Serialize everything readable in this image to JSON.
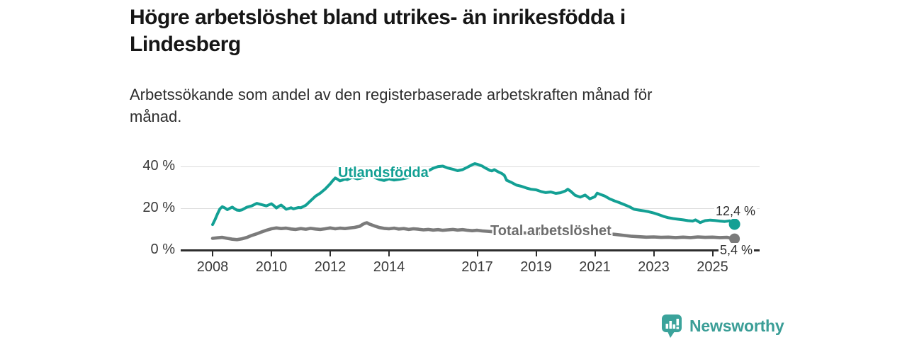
{
  "title": "Högre arbetslöshet bland utrikes- än inrikesfödda i Lindesberg",
  "subtitle": "Arbetssökande som andel av den registerbaserade arbetskraften månad för månad.",
  "branding": {
    "logo_text": "Newsworthy",
    "logo_icon": "bar-chart-speech-bubble-icon",
    "brand_color": "#3BA39B"
  },
  "colors": {
    "foreign_born_line": "#13a094",
    "total_line": "#7b7b7b",
    "total_label_text": "#6d6d6d",
    "gridline": "#dcdcdc",
    "axis": "#2d2d2d",
    "title_text": "#161616",
    "body_text": "#2e2e2e"
  },
  "chart_data": {
    "type": "line",
    "x_unit": "year (monthly observations)",
    "y_unit": "percent of registered labour force",
    "x_ticks": [
      "2008",
      "2010",
      "2012",
      "2014",
      "2017",
      "2019",
      "2021",
      "2023",
      "2025"
    ],
    "x_tick_years": [
      2008,
      2010,
      2012,
      2014,
      2017,
      2019,
      2021,
      2023,
      2025
    ],
    "y_ticks": [
      {
        "value": 0,
        "label": "0 %"
      },
      {
        "value": 20,
        "label": "20 %"
      },
      {
        "value": 40,
        "label": "40 %"
      }
    ],
    "ylim": [
      0,
      44
    ],
    "xlim": [
      2006.9,
      2026.6
    ],
    "grid": "horizontal-only",
    "legend": "inline-series-labels",
    "series": [
      {
        "name": "Utlandsfödda",
        "color": "#13a094",
        "end_value": 12.4,
        "end_label": "12,4 %",
        "points": [
          [
            2008.0,
            12.2
          ],
          [
            2008.08,
            14.5
          ],
          [
            2008.17,
            17.5
          ],
          [
            2008.25,
            19.8
          ],
          [
            2008.33,
            20.8
          ],
          [
            2008.42,
            20.2
          ],
          [
            2008.5,
            19.4
          ],
          [
            2008.58,
            20.0
          ],
          [
            2008.67,
            20.6
          ],
          [
            2008.75,
            19.8
          ],
          [
            2008.83,
            19.2
          ],
          [
            2008.92,
            19.0
          ],
          [
            2009.0,
            19.3
          ],
          [
            2009.17,
            20.6
          ],
          [
            2009.33,
            21.2
          ],
          [
            2009.5,
            22.4
          ],
          [
            2009.67,
            21.8
          ],
          [
            2009.83,
            21.2
          ],
          [
            2010.0,
            22.2
          ],
          [
            2010.08,
            21.4
          ],
          [
            2010.17,
            20.2
          ],
          [
            2010.25,
            21.0
          ],
          [
            2010.33,
            21.6
          ],
          [
            2010.42,
            20.6
          ],
          [
            2010.5,
            19.6
          ],
          [
            2010.58,
            19.9
          ],
          [
            2010.67,
            20.3
          ],
          [
            2010.75,
            19.8
          ],
          [
            2010.83,
            20.1
          ],
          [
            2010.92,
            20.4
          ],
          [
            2011.0,
            20.3
          ],
          [
            2011.17,
            21.5
          ],
          [
            2011.33,
            23.6
          ],
          [
            2011.5,
            25.9
          ],
          [
            2011.67,
            27.4
          ],
          [
            2011.83,
            29.3
          ],
          [
            2012.0,
            31.8
          ],
          [
            2012.08,
            33.2
          ],
          [
            2012.17,
            34.6
          ],
          [
            2012.25,
            34.0
          ],
          [
            2012.33,
            33.2
          ],
          [
            2012.42,
            33.6
          ],
          [
            2012.5,
            34.1
          ],
          [
            2012.58,
            33.8
          ],
          [
            2012.67,
            34.4
          ],
          [
            2012.75,
            35.0
          ],
          [
            2012.83,
            34.6
          ],
          [
            2012.92,
            34.2
          ],
          [
            2013.0,
            34.4
          ],
          [
            2013.17,
            35.1
          ],
          [
            2013.33,
            35.6
          ],
          [
            2013.5,
            34.9
          ],
          [
            2013.67,
            33.9
          ],
          [
            2013.83,
            33.4
          ],
          [
            2014.0,
            34.2
          ],
          [
            2014.17,
            33.6
          ],
          [
            2014.33,
            33.9
          ],
          [
            2014.5,
            34.3
          ],
          [
            2014.67,
            34.9
          ],
          [
            2014.83,
            35.6
          ],
          [
            2015.0,
            36.4
          ],
          [
            2015.17,
            37.1
          ],
          [
            2015.33,
            38.0
          ],
          [
            2015.5,
            39.3
          ],
          [
            2015.67,
            40.1
          ],
          [
            2015.83,
            40.3
          ],
          [
            2016.0,
            39.4
          ],
          [
            2016.17,
            38.8
          ],
          [
            2016.33,
            38.1
          ],
          [
            2016.5,
            38.6
          ],
          [
            2016.67,
            39.8
          ],
          [
            2016.83,
            41.0
          ],
          [
            2016.92,
            41.5
          ],
          [
            2017.0,
            41.2
          ],
          [
            2017.08,
            40.8
          ],
          [
            2017.17,
            40.3
          ],
          [
            2017.25,
            39.6
          ],
          [
            2017.33,
            39.0
          ],
          [
            2017.42,
            38.3
          ],
          [
            2017.5,
            38.0
          ],
          [
            2017.58,
            38.6
          ],
          [
            2017.67,
            37.9
          ],
          [
            2017.75,
            37.3
          ],
          [
            2017.83,
            36.8
          ],
          [
            2017.92,
            35.9
          ],
          [
            2018.0,
            33.5
          ],
          [
            2018.17,
            32.4
          ],
          [
            2018.33,
            31.2
          ],
          [
            2018.5,
            30.6
          ],
          [
            2018.67,
            29.8
          ],
          [
            2018.83,
            29.2
          ],
          [
            2019.0,
            28.9
          ],
          [
            2019.17,
            28.1
          ],
          [
            2019.33,
            27.6
          ],
          [
            2019.5,
            27.9
          ],
          [
            2019.67,
            27.2
          ],
          [
            2019.83,
            27.5
          ],
          [
            2020.0,
            28.4
          ],
          [
            2020.08,
            29.2
          ],
          [
            2020.17,
            28.3
          ],
          [
            2020.33,
            26.3
          ],
          [
            2020.5,
            25.4
          ],
          [
            2020.67,
            26.4
          ],
          [
            2020.83,
            24.6
          ],
          [
            2021.0,
            25.6
          ],
          [
            2021.08,
            27.3
          ],
          [
            2021.17,
            26.8
          ],
          [
            2021.33,
            26.0
          ],
          [
            2021.5,
            24.6
          ],
          [
            2021.67,
            23.6
          ],
          [
            2021.83,
            22.8
          ],
          [
            2022.0,
            21.8
          ],
          [
            2022.17,
            20.8
          ],
          [
            2022.33,
            19.6
          ],
          [
            2022.5,
            19.2
          ],
          [
            2022.67,
            18.8
          ],
          [
            2022.83,
            18.4
          ],
          [
            2023.0,
            17.8
          ],
          [
            2023.17,
            17.0
          ],
          [
            2023.33,
            16.2
          ],
          [
            2023.5,
            15.5
          ],
          [
            2023.67,
            15.1
          ],
          [
            2023.83,
            14.8
          ],
          [
            2024.0,
            14.5
          ],
          [
            2024.17,
            14.1
          ],
          [
            2024.33,
            13.9
          ],
          [
            2024.42,
            14.5
          ],
          [
            2024.58,
            13.2
          ],
          [
            2024.75,
            14.1
          ],
          [
            2024.92,
            14.4
          ],
          [
            2025.08,
            14.2
          ],
          [
            2025.25,
            13.9
          ],
          [
            2025.42,
            13.7
          ],
          [
            2025.58,
            14.0
          ],
          [
            2025.75,
            12.4
          ]
        ]
      },
      {
        "name": "Total arbetslöshet",
        "color": "#7b7b7b",
        "end_value": 5.4,
        "end_label": "5,4 %",
        "points": [
          [
            2008.0,
            5.6
          ],
          [
            2008.17,
            5.9
          ],
          [
            2008.33,
            6.1
          ],
          [
            2008.5,
            5.6
          ],
          [
            2008.67,
            5.2
          ],
          [
            2008.83,
            5.0
          ],
          [
            2009.0,
            5.4
          ],
          [
            2009.17,
            6.1
          ],
          [
            2009.33,
            7.0
          ],
          [
            2009.5,
            7.8
          ],
          [
            2009.67,
            8.7
          ],
          [
            2009.83,
            9.5
          ],
          [
            2010.0,
            10.2
          ],
          [
            2010.17,
            10.6
          ],
          [
            2010.33,
            10.3
          ],
          [
            2010.5,
            10.5
          ],
          [
            2010.67,
            10.1
          ],
          [
            2010.83,
            9.9
          ],
          [
            2011.0,
            10.3
          ],
          [
            2011.17,
            10.0
          ],
          [
            2011.33,
            10.4
          ],
          [
            2011.5,
            10.1
          ],
          [
            2011.67,
            9.9
          ],
          [
            2011.83,
            10.2
          ],
          [
            2012.0,
            10.6
          ],
          [
            2012.17,
            10.2
          ],
          [
            2012.33,
            10.5
          ],
          [
            2012.5,
            10.3
          ],
          [
            2012.67,
            10.6
          ],
          [
            2012.83,
            10.9
          ],
          [
            2013.0,
            11.4
          ],
          [
            2013.08,
            12.1
          ],
          [
            2013.17,
            12.8
          ],
          [
            2013.25,
            13.1
          ],
          [
            2013.33,
            12.5
          ],
          [
            2013.5,
            11.6
          ],
          [
            2013.67,
            10.8
          ],
          [
            2013.83,
            10.4
          ],
          [
            2014.0,
            10.2
          ],
          [
            2014.17,
            10.5
          ],
          [
            2014.33,
            10.1
          ],
          [
            2014.5,
            10.3
          ],
          [
            2014.67,
            9.9
          ],
          [
            2014.83,
            10.2
          ],
          [
            2015.0,
            10.0
          ],
          [
            2015.17,
            9.7
          ],
          [
            2015.33,
            9.9
          ],
          [
            2015.5,
            9.6
          ],
          [
            2015.67,
            9.8
          ],
          [
            2015.83,
            9.5
          ],
          [
            2016.0,
            9.7
          ],
          [
            2016.17,
            9.9
          ],
          [
            2016.33,
            9.6
          ],
          [
            2016.5,
            9.8
          ],
          [
            2016.67,
            9.5
          ],
          [
            2016.83,
            9.3
          ],
          [
            2017.0,
            9.5
          ],
          [
            2017.17,
            9.2
          ],
          [
            2017.33,
            9.0
          ],
          [
            2017.5,
            8.8
          ],
          [
            2017.67,
            8.6
          ],
          [
            2017.83,
            8.5
          ],
          [
            2018.0,
            8.4
          ],
          [
            2018.25,
            8.6
          ],
          [
            2018.5,
            8.3
          ],
          [
            2018.75,
            8.1
          ],
          [
            2019.0,
            8.0
          ],
          [
            2019.25,
            7.8
          ],
          [
            2019.5,
            7.7
          ],
          [
            2019.75,
            7.8
          ],
          [
            2020.0,
            8.0
          ],
          [
            2020.25,
            8.6
          ],
          [
            2020.5,
            8.9
          ],
          [
            2020.75,
            8.7
          ],
          [
            2021.0,
            8.5
          ],
          [
            2021.25,
            8.2
          ],
          [
            2021.5,
            7.8
          ],
          [
            2021.75,
            7.4
          ],
          [
            2022.0,
            7.0
          ],
          [
            2022.25,
            6.6
          ],
          [
            2022.5,
            6.4
          ],
          [
            2022.75,
            6.2
          ],
          [
            2023.0,
            6.3
          ],
          [
            2023.25,
            6.1
          ],
          [
            2023.5,
            6.2
          ],
          [
            2023.75,
            6.0
          ],
          [
            2024.0,
            6.2
          ],
          [
            2024.25,
            6.0
          ],
          [
            2024.5,
            6.3
          ],
          [
            2024.75,
            6.1
          ],
          [
            2025.0,
            6.2
          ],
          [
            2025.25,
            6.0
          ],
          [
            2025.5,
            6.1
          ],
          [
            2025.75,
            5.4
          ]
        ]
      }
    ]
  }
}
